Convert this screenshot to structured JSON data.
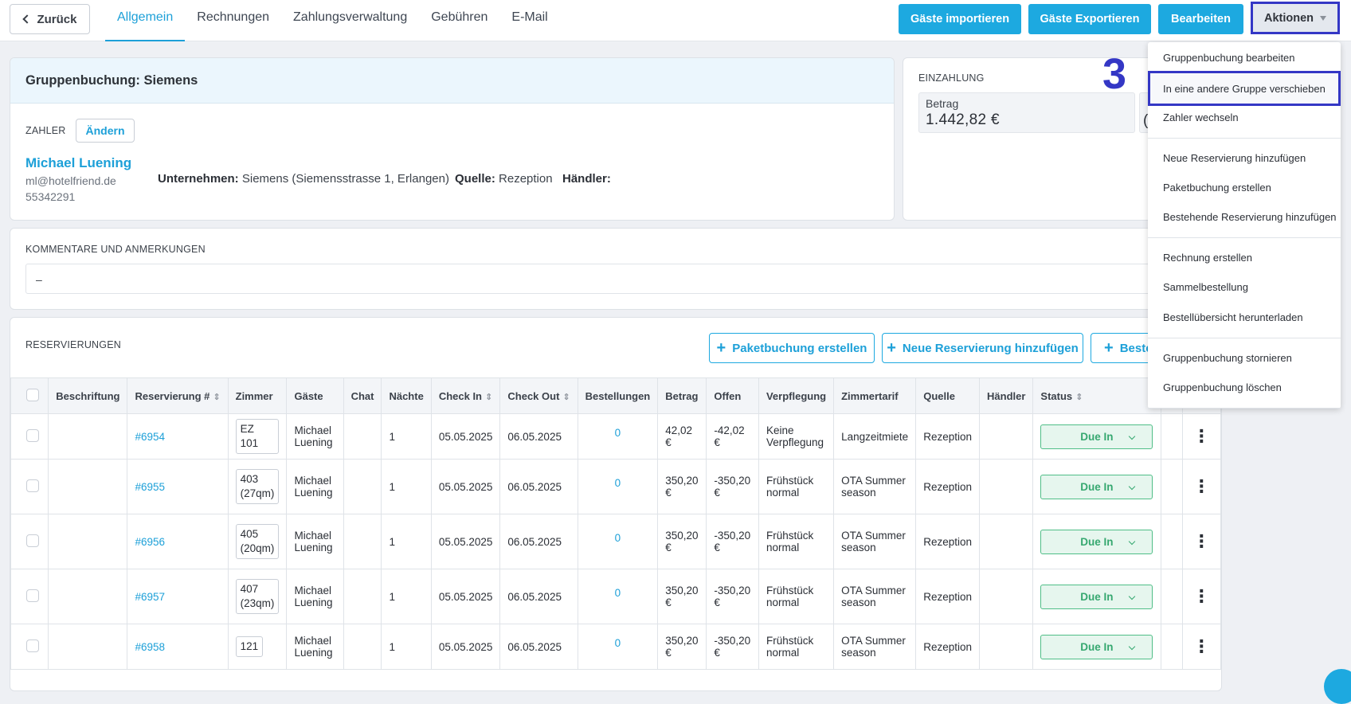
{
  "header": {
    "back_label": "Zurück",
    "tabs": [
      "Allgemein",
      "Rechnungen",
      "Zahlungsverwaltung",
      "Gebühren",
      "E-Mail"
    ],
    "buttons": {
      "import": "Gäste importieren",
      "export": "Gäste Exportieren",
      "edit": "Bearbeiten",
      "actions": "Aktionen"
    }
  },
  "group": {
    "title": "Gruppenbuchung: Siemens",
    "payer_label": "ZAHLER",
    "change_label": "Ändern",
    "payer_name": "Michael Luening",
    "payer_email": "ml@hotelfriend.de",
    "payer_phone": "55342291",
    "company_label": "Unternehmen:",
    "company_value": "Siemens (Siemensstrasse 1, Erlangen)",
    "source_label": "Quelle:",
    "source_value": "Rezeption",
    "dealer_label": "Händler:"
  },
  "deposit": {
    "title": "EINZAHLUNG",
    "amount_label": "Betrag",
    "amount_value": "1.442,82 €",
    "partial_value": "("
  },
  "step_marker": "3",
  "comments": {
    "title": "KOMMENTARE UND ANMERKUNGEN",
    "value": "–"
  },
  "reservations": {
    "title": "RESERVIERUNGEN",
    "buttons": {
      "package": "Paketbuchung erstellen",
      "new": "Neue Reservierung hinzufügen",
      "existing": "Beste"
    },
    "columns": [
      "Beschriftung",
      "Reservierung #",
      "Zimmer",
      "Gäste",
      "Chat",
      "Nächte",
      "Check In",
      "Check Out",
      "Bestellungen",
      "Betrag",
      "Offen",
      "Verpflegung",
      "Zimmertarif",
      "Quelle",
      "Händler",
      "Status"
    ],
    "rows": [
      {
        "id": "#6954",
        "room": "EZ 101",
        "guest": "Michael Luening",
        "nights": "1",
        "checkin": "05.05.2025",
        "checkout": "06.05.2025",
        "orders": "0",
        "amount": "42,02 €",
        "open": "-42,02 €",
        "board": "Keine Verpflegung",
        "rate": "Langzeitmiete",
        "source": "Rezeption",
        "status": "Due In"
      },
      {
        "id": "#6955",
        "room": "403 (27qm)",
        "guest": "Michael Luening",
        "nights": "1",
        "checkin": "05.05.2025",
        "checkout": "06.05.2025",
        "orders": "0",
        "amount": "350,20 €",
        "open": "-350,20 €",
        "board": "Frühstück normal",
        "rate": "OTA Summer season",
        "source": "Rezeption",
        "status": "Due In"
      },
      {
        "id": "#6956",
        "room": "405 (20qm)",
        "guest": "Michael Luening",
        "nights": "1",
        "checkin": "05.05.2025",
        "checkout": "06.05.2025",
        "orders": "0",
        "amount": "350,20 €",
        "open": "-350,20 €",
        "board": "Frühstück normal",
        "rate": "OTA Summer season",
        "source": "Rezeption",
        "status": "Due In"
      },
      {
        "id": "#6957",
        "room": "407 (23qm)",
        "guest": "Michael Luening",
        "nights": "1",
        "checkin": "05.05.2025",
        "checkout": "06.05.2025",
        "orders": "0",
        "amount": "350,20 €",
        "open": "-350,20 €",
        "board": "Frühstück normal",
        "rate": "OTA Summer season",
        "source": "Rezeption",
        "status": "Due In"
      },
      {
        "id": "#6958",
        "room": "121",
        "guest": "Michael Luening",
        "nights": "1",
        "checkin": "05.05.2025",
        "checkout": "06.05.2025",
        "orders": "0",
        "amount": "350,20 €",
        "open": "-350,20 €",
        "board": "Frühstück normal",
        "rate": "OTA Summer season",
        "source": "Rezeption",
        "status": "Due In"
      }
    ]
  },
  "actions_menu": {
    "items": [
      "Gruppenbuchung bearbeiten",
      "In eine andere Gruppe verschieben",
      "Zahler wechseln",
      "Neue Reservierung hinzufügen",
      "Paketbuchung erstellen",
      "Bestehende Reservierung hinzufügen",
      "Rechnung erstellen",
      "Sammelbestellung",
      "Bestellübersicht herunterladen",
      "Gruppenbuchung stornieren",
      "Gruppenbuchung löschen"
    ]
  },
  "colors": {
    "accent": "#1da9e0",
    "highlight": "#3437c5",
    "status_green": "#36a870"
  }
}
